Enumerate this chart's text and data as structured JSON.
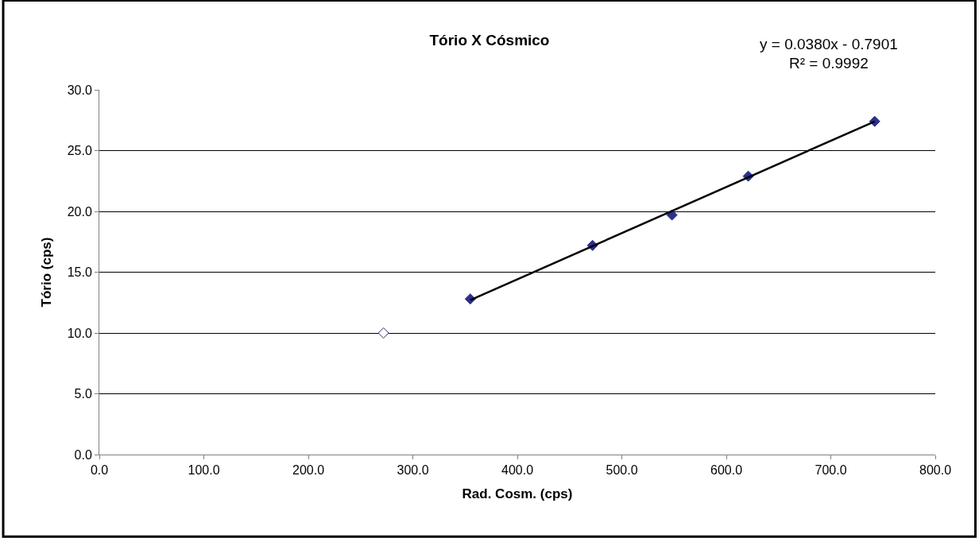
{
  "chart_data": {
    "type": "scatter",
    "title": "Tório X Cósmico",
    "xlabel": "Rad. Cosm. (cps)",
    "ylabel": "Tório (cps)",
    "series": [
      {
        "x": [
          355,
          472,
          548,
          621,
          742
        ],
        "values": [
          12.8,
          17.2,
          19.7,
          22.9,
          27.4
        ],
        "color": "#2e2e8c"
      },
      {
        "x": [
          272
        ],
        "values": [
          10.0
        ],
        "color": "#ffffff"
      },
      {
        "type": "line",
        "x": [
          355,
          742
        ],
        "values": [
          12.7,
          27.4
        ],
        "color": "#000000",
        "marker": "none"
      }
    ],
    "annotations": [
      "y = 0.0380x - 0.7901",
      "R² = 0.9992"
    ],
    "xlim": [
      0,
      800
    ],
    "xticks": [
      {
        "value": 0,
        "label": "0.0"
      },
      {
        "value": 100,
        "label": "100.0"
      },
      {
        "value": 200,
        "label": "200.0"
      },
      {
        "value": 300,
        "label": "300.0"
      },
      {
        "value": 400,
        "label": "400.0"
      },
      {
        "value": 500,
        "label": "500.0"
      },
      {
        "value": 600,
        "label": "600.0"
      },
      {
        "value": 700,
        "label": "700.0"
      },
      {
        "value": 800,
        "label": "800.0"
      }
    ],
    "ylim": [
      0,
      30
    ],
    "yticks": [
      {
        "value": 0,
        "label": "0.0"
      },
      {
        "value": 5,
        "label": "5.0"
      },
      {
        "value": 10,
        "label": "10.0"
      },
      {
        "value": 15,
        "label": "15.0"
      },
      {
        "value": 20,
        "label": "20.0"
      },
      {
        "value": 25,
        "label": "25.0"
      },
      {
        "value": 30,
        "label": "30.0"
      }
    ],
    "grid": "y",
    "marker": "diamond"
  }
}
